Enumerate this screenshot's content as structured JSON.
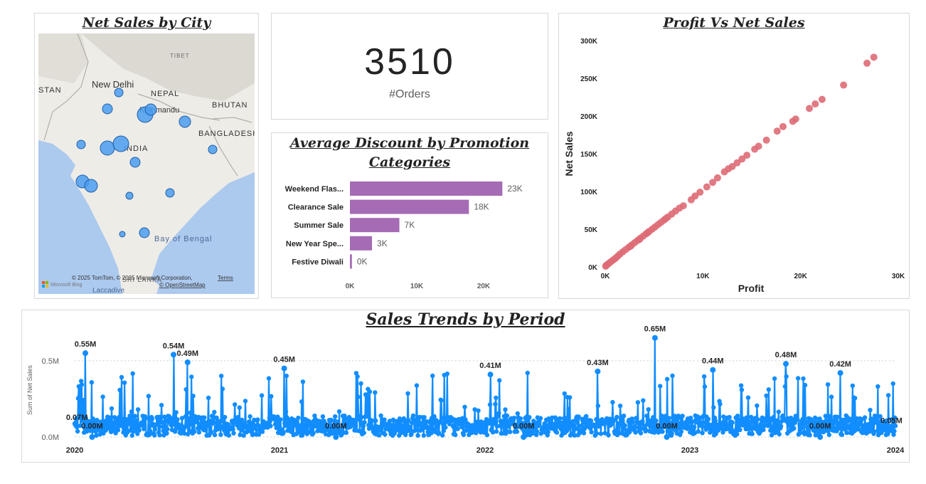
{
  "map": {
    "title": "Net Sales by City",
    "labels": {
      "tibet": "TIBET",
      "nepal": "NEPAL",
      "bhutan": "BHUTAN",
      "bangladesh": "BANGLADESH",
      "india": "INDIA",
      "new_delhi": "New Delhi",
      "kathmandu": "Kathmandu",
      "stan": "STAN",
      "bay_of_bengal": "Bay of Bengal",
      "laccadive": "Laccadive",
      "sri_lanka": "SRI LANKA"
    },
    "attribution": "© 2025 TomTom, © 2025 Microsoft Corporation,",
    "terms": "Terms",
    "osm": "© OpenStreetMap",
    "bing": "Microsoft Bing",
    "colors": {
      "land": "#eeece7",
      "sea": "#acc9ee",
      "hills": "#dad7d0",
      "bubble": "#4a9df0",
      "bubble_edge": "#1f5fa8"
    }
  },
  "kpi": {
    "value": "3510",
    "label": "#Orders"
  },
  "discount_chart": {
    "title_line1": "Average Discount by Promotion",
    "title_line2": "Categories"
  },
  "scatter_chart": {
    "title": "Profit Vs Net Sales"
  },
  "trend_chart": {
    "title": "Sales Trends by Period"
  },
  "chart_data": [
    {
      "type": "bar",
      "orientation": "horizontal",
      "title": "Average Discount by Promotion Categories",
      "categories": [
        "Weekend Flas...",
        "Clearance Sale",
        "Summer Sale",
        "New Year Spe...",
        "Festive Diwali"
      ],
      "values": [
        22800,
        17800,
        7400,
        3300,
        300
      ],
      "data_labels": [
        "23K",
        "18K",
        "7K",
        "3K",
        "0K"
      ],
      "xlim": [
        0,
        25000
      ],
      "x_ticks": [
        0,
        10000,
        20000
      ],
      "x_tick_labels": [
        "0K",
        "10K",
        "20K"
      ],
      "color": "#a66bb5",
      "grid": false
    },
    {
      "type": "scatter",
      "title": "Profit Vs Net Sales",
      "xlabel": "Profit",
      "ylabel": "Net Sales",
      "xlim": [
        0,
        30000
      ],
      "ylim": [
        0,
        300000
      ],
      "x_ticks": [
        0,
        10000,
        20000,
        30000
      ],
      "x_tick_labels": [
        "0K",
        "10K",
        "20K",
        "30K"
      ],
      "y_ticks": [
        0,
        50000,
        100000,
        150000,
        200000,
        250000,
        300000
      ],
      "y_tick_labels": [
        "0K",
        "50K",
        "100K",
        "150K",
        "200K",
        "250K",
        "300K"
      ],
      "color": "#de6b75",
      "points": [
        [
          27500,
          278000
        ],
        [
          26800,
          270000
        ],
        [
          24400,
          241000
        ],
        [
          22200,
          222000
        ],
        [
          21500,
          216000
        ],
        [
          20900,
          210000
        ],
        [
          19500,
          196000
        ],
        [
          19200,
          193000
        ],
        [
          18200,
          186000
        ],
        [
          17600,
          180000
        ],
        [
          16500,
          168000
        ],
        [
          15700,
          160000
        ],
        [
          15300,
          156000
        ],
        [
          14500,
          148000
        ],
        [
          14000,
          143000
        ],
        [
          13500,
          138000
        ],
        [
          13000,
          133000
        ],
        [
          12600,
          130000
        ],
        [
          12200,
          126000
        ],
        [
          11500,
          118000
        ],
        [
          11000,
          112000
        ],
        [
          10400,
          106000
        ],
        [
          9700,
          99000
        ],
        [
          9200,
          94000
        ],
        [
          8800,
          89000
        ],
        [
          8000,
          81000
        ],
        [
          7600,
          78000
        ],
        [
          7200,
          74000
        ],
        [
          6800,
          70000
        ],
        [
          6400,
          66000
        ],
        [
          6000,
          62000
        ],
        [
          5700,
          59000
        ],
        [
          5400,
          56000
        ],
        [
          5100,
          53000
        ],
        [
          4800,
          50000
        ],
        [
          4500,
          47000
        ],
        [
          4200,
          44000
        ],
        [
          3900,
          41000
        ],
        [
          3600,
          38000
        ],
        [
          3300,
          35000
        ],
        [
          3000,
          32000
        ],
        [
          2700,
          29000
        ],
        [
          2400,
          26000
        ],
        [
          2100,
          23000
        ],
        [
          1800,
          20000
        ],
        [
          1500,
          17000
        ],
        [
          1300,
          14500
        ],
        [
          1100,
          12000
        ],
        [
          900,
          10000
        ],
        [
          700,
          8000
        ],
        [
          500,
          6000
        ],
        [
          350,
          4500
        ],
        [
          200,
          3000
        ],
        [
          100,
          2000
        ],
        [
          50,
          1000
        ],
        [
          2600,
          27500
        ],
        [
          4300,
          45000
        ],
        [
          6200,
          64000
        ],
        [
          3500,
          36500
        ]
      ]
    },
    {
      "type": "line",
      "title": "Sales Trends by Period",
      "ylabel": "Sum of Net Sales",
      "ylim": [
        0,
        700000
      ],
      "y_ticks": [
        0,
        500000
      ],
      "y_tick_labels": [
        "0.0M",
        "0.5M"
      ],
      "x_tick_labels": [
        "2020",
        "2021",
        "2022",
        "2023",
        "2024"
      ],
      "x_range": [
        "2020-01-01",
        "2024-01-01"
      ],
      "color": "#118dff",
      "grid": true,
      "annotations": [
        {
          "x": "2020-01-05",
          "value": 70000,
          "label": "0.07M"
        },
        {
          "x": "2020-01-20",
          "value": 550000,
          "label": "0.55M"
        },
        {
          "x": "2020-02-01",
          "value": 0,
          "label": "0.00M"
        },
        {
          "x": "2020-06-25",
          "value": 540000,
          "label": "0.54M"
        },
        {
          "x": "2020-07-20",
          "value": 490000,
          "label": "0.49M"
        },
        {
          "x": "2021-01-08",
          "value": 450000,
          "label": "0.45M"
        },
        {
          "x": "2021-04-10",
          "value": 0,
          "label": "0.00M"
        },
        {
          "x": "2022-01-10",
          "value": 410000,
          "label": "0.41M"
        },
        {
          "x": "2022-03-10",
          "value": 0,
          "label": "0.00M"
        },
        {
          "x": "2022-07-20",
          "value": 430000,
          "label": "0.43M"
        },
        {
          "x": "2022-10-30",
          "value": 650000,
          "label": "0.65M"
        },
        {
          "x": "2022-11-20",
          "value": 0,
          "label": "0.00M"
        },
        {
          "x": "2023-02-10",
          "value": 440000,
          "label": "0.44M"
        },
        {
          "x": "2023-06-20",
          "value": 480000,
          "label": "0.48M"
        },
        {
          "x": "2023-08-20",
          "value": 0,
          "label": "0.00M"
        },
        {
          "x": "2023-09-25",
          "value": 420000,
          "label": "0.42M"
        },
        {
          "x": "2023-12-25",
          "value": 50000,
          "label": "0.05M"
        }
      ]
    }
  ]
}
